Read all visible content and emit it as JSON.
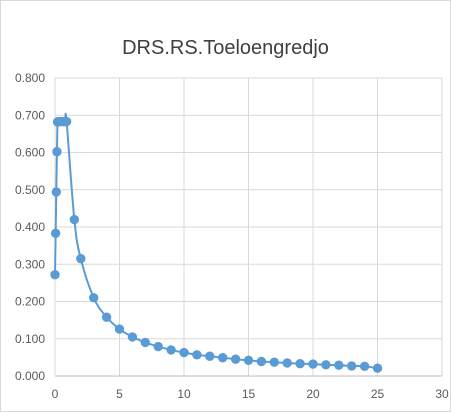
{
  "chart_data": {
    "type": "scatter",
    "title": "DRS.RS.Toeloengredjo",
    "xlabel": "",
    "ylabel": "",
    "xlim": [
      0,
      30
    ],
    "ylim": [
      0,
      0.8
    ],
    "xticks": [
      0,
      5,
      10,
      15,
      20,
      25,
      30
    ],
    "yticks": [
      0,
      0.1,
      0.2,
      0.3,
      0.4,
      0.5,
      0.6,
      0.7,
      0.8
    ],
    "ytick_labels": [
      "0.000",
      "0.100",
      "0.200",
      "0.300",
      "0.400",
      "0.500",
      "0.600",
      "0.700",
      "0.800"
    ],
    "xtick_labels": [
      "0",
      "5",
      "10",
      "15",
      "20",
      "25",
      "30"
    ],
    "grid": true,
    "legend": "none",
    "series": [
      {
        "color": "#5B9BD5",
        "x": [
          0,
          0.05,
          0.1,
          0.15,
          0.2,
          0.25,
          0.3,
          0.4,
          0.5,
          0.6,
          0.7,
          0.8,
          0.9,
          1.5,
          2,
          3,
          4,
          5,
          6,
          7,
          8,
          9,
          10,
          11,
          12,
          13,
          14,
          15,
          16,
          17,
          18,
          19,
          20,
          21,
          22,
          23,
          24,
          25
        ],
        "y": [
          0.272,
          0.383,
          0.494,
          0.602,
          0.682,
          0.683,
          0.683,
          0.683,
          0.683,
          0.683,
          0.683,
          0.683,
          0.683,
          0.42,
          0.315,
          0.21,
          0.158,
          0.126,
          0.105,
          0.09,
          0.079,
          0.07,
          0.063,
          0.057,
          0.053,
          0.049,
          0.045,
          0.042,
          0.039,
          0.037,
          0.035,
          0.033,
          0.032,
          0.03,
          0.029,
          0.027,
          0.026,
          0.021
        ]
      }
    ]
  }
}
